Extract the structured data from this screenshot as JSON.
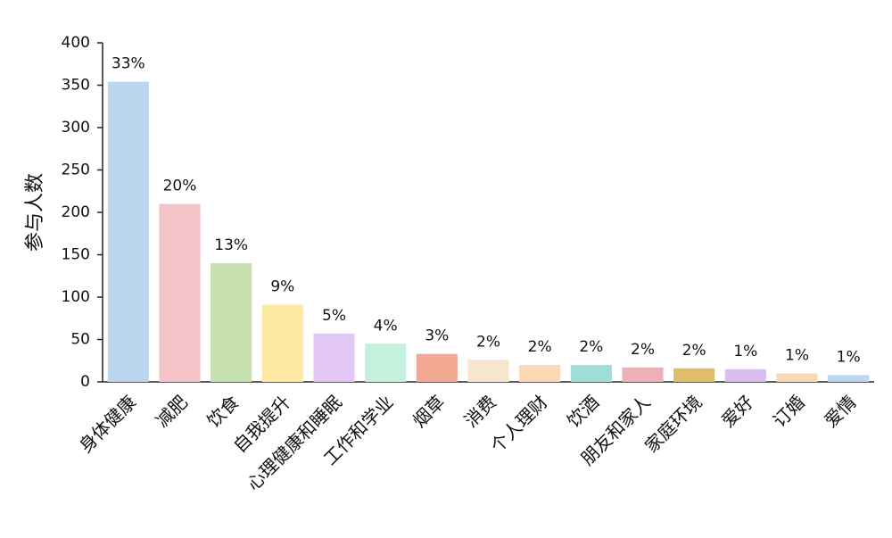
{
  "chart_data": {
    "type": "bar",
    "y_label": "参与人数",
    "categories": [
      "身体健康",
      "减肥",
      "饮食",
      "自我提升",
      "心理健康和睡眠",
      "工作和学业",
      "烟草",
      "消费",
      "个人理财",
      "饮酒",
      "朋友和家人",
      "家庭环境",
      "爱好",
      "订婚",
      "爱情"
    ],
    "values": [
      354,
      210,
      140,
      91,
      57,
      45,
      33,
      26,
      20,
      20,
      17,
      16,
      15,
      10,
      8
    ],
    "value_labels": [
      "33%",
      "20%",
      "13%",
      "9%",
      "5%",
      "4%",
      "3%",
      "2%",
      "2%",
      "2%",
      "2%",
      "2%",
      "1%",
      "1%",
      "1%"
    ],
    "colors": [
      "#bcd6ee",
      "#f3c3c7",
      "#c6e0b0",
      "#fde9a1",
      "#e2c6f3",
      "#c4f0de",
      "#f4a793",
      "#f6e5cf",
      "#fdd7b6",
      "#9fded9",
      "#eeafb7",
      "#dfbe6a",
      "#dcbdf1",
      "#fad7b6",
      "#bcd6ee"
    ],
    "ylim": [
      0,
      400
    ],
    "yticks": [
      0,
      50,
      100,
      150,
      200,
      250,
      300,
      350,
      400
    ],
    "grid": false
  }
}
